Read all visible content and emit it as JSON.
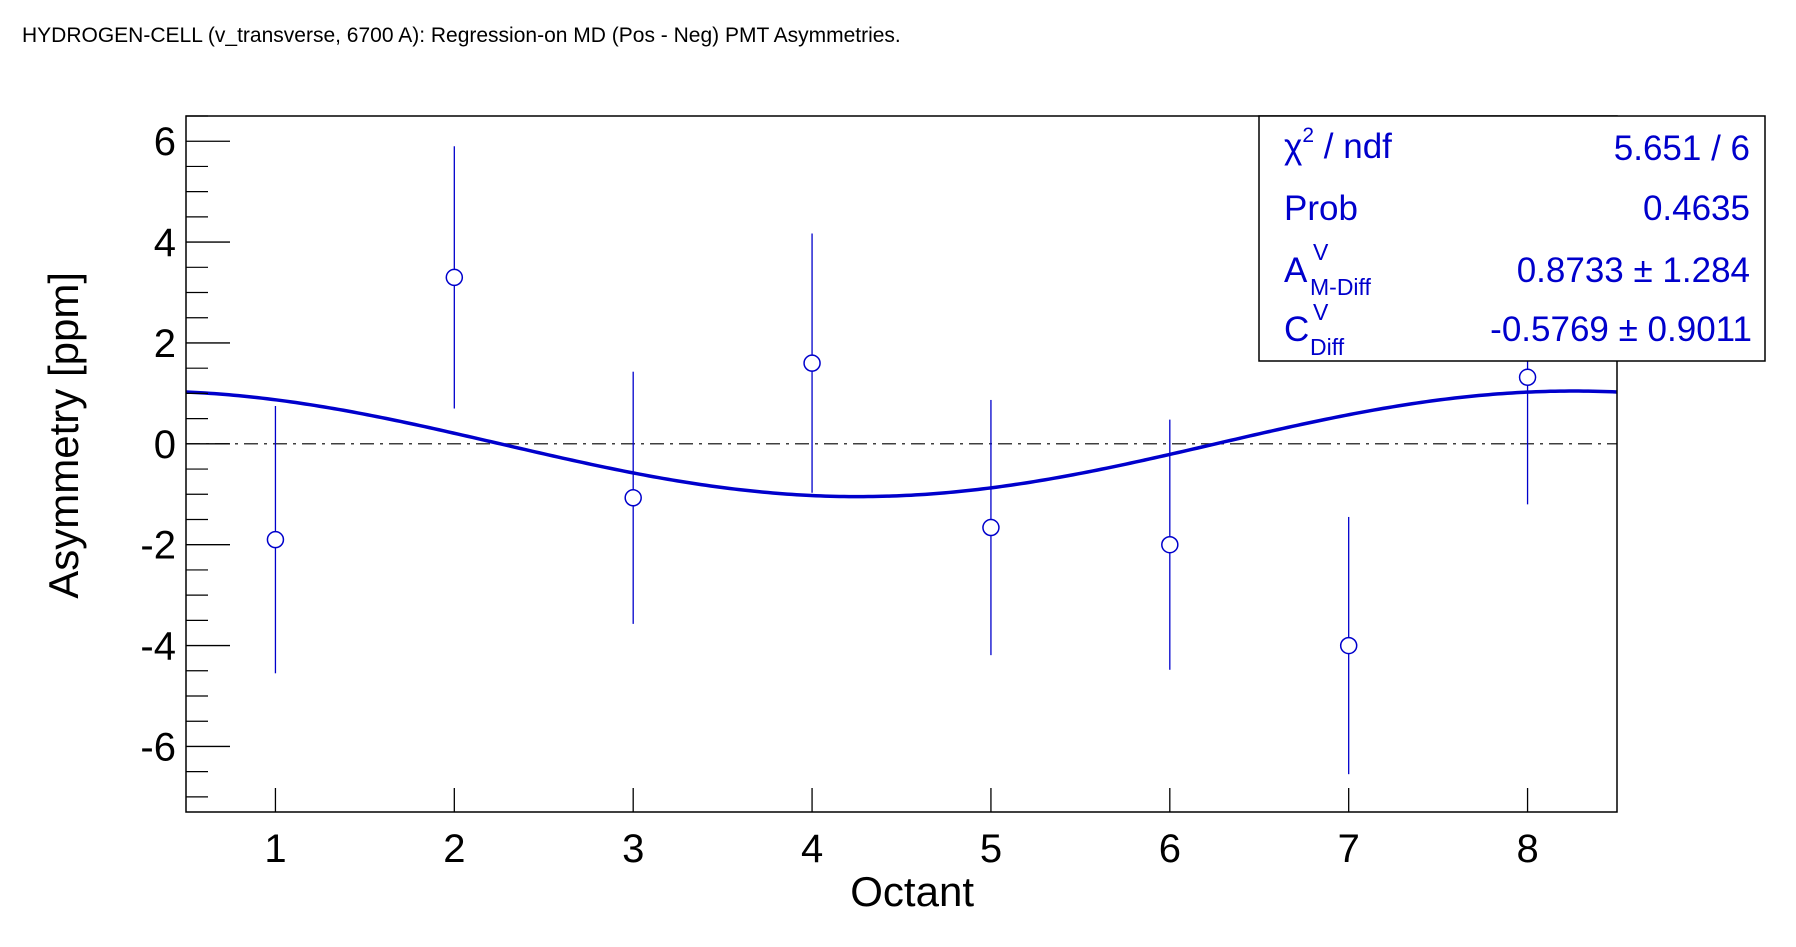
{
  "title": "HYDROGEN-CELL (v_transverse, 6700 A): Regression-on MD (Pos - Neg) PMT Asymmetries.",
  "colors": {
    "data": "#0000cc",
    "fit": "#0000cc",
    "axis": "#000000",
    "zero_line": "#000000"
  },
  "chart_data": {
    "type": "scatter",
    "xlabel": "Octant",
    "ylabel": "Asymmetry [ppm]",
    "xlim": [
      0.5,
      8.5
    ],
    "ylim": [
      -7.3,
      6.5
    ],
    "x_ticks": [
      "1",
      "2",
      "3",
      "4",
      "5",
      "6",
      "7",
      "8"
    ],
    "y_ticks": [
      "-6",
      "-4",
      "-2",
      "0",
      "2",
      "4",
      "6"
    ],
    "grid": false,
    "series": [
      {
        "x": [
          1,
          2,
          3,
          4,
          5,
          6,
          7,
          8
        ],
        "y": [
          -1.9,
          3.3,
          -1.07,
          1.6,
          -1.66,
          -2.0,
          -4.0,
          1.32
        ],
        "err": [
          2.65,
          2.6,
          2.5,
          2.57,
          2.53,
          2.48,
          2.55,
          2.52
        ]
      }
    ],
    "fit": {
      "function": "A*cos(phi) + C*sin(phi)",
      "A": 0.8733,
      "C": -0.5769,
      "x_range": [
        0.5,
        8.5
      ]
    },
    "zero_line": true,
    "stats_box": {
      "position": "top-right",
      "rows": [
        {
          "label": "χ",
          "sup": "2",
          "suffix": " / ndf",
          "value": "5.651 / 6"
        },
        {
          "label": "Prob",
          "value": "0.4635"
        },
        {
          "label": "A",
          "sup": "V",
          "sub": "M-Diff",
          "value": "0.8733 ± 1.284"
        },
        {
          "label": "C",
          "sup": "V",
          "sub": "Diff",
          "value": "-0.5769 ± 0.9011"
        }
      ]
    }
  }
}
